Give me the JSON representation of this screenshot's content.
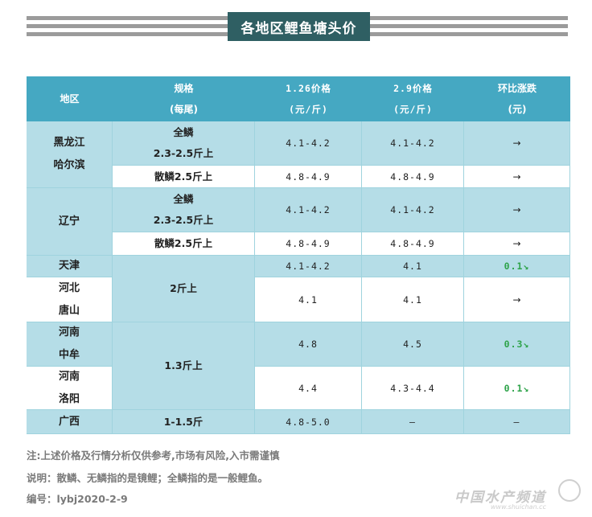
{
  "title": "各地区鲤鱼塘头价",
  "header": {
    "region": "地区",
    "spec_line1": "规格",
    "spec_line2": "(每尾)",
    "price1_line1": "1.26价格",
    "price1_line2": "(元/斤)",
    "price2_line1": "2.9价格",
    "price2_line2": "(元/斤)",
    "change_line1": "环比涨跌",
    "change_line2": "(元)"
  },
  "rows": {
    "r1": {
      "region1": "黑龙江",
      "region2": "哈尔滨",
      "spec1": "全鳞",
      "spec2": "2.3-2.5斤上",
      "p1": "4.1-4.2",
      "p2": "4.1-4.2",
      "chg": "→"
    },
    "r2": {
      "spec": "散鳞2.5斤上",
      "p1": "4.8-4.9",
      "p2": "4.8-4.9",
      "chg": "→"
    },
    "r3": {
      "region": "辽宁",
      "spec1": "全鳞",
      "spec2": "2.3-2.5斤上",
      "p1": "4.1-4.2",
      "p2": "4.1-4.2",
      "chg": "→"
    },
    "r4": {
      "spec": "散鳞2.5斤上",
      "p1": "4.8-4.9",
      "p2": "4.8-4.9",
      "chg": "→"
    },
    "r5": {
      "region": "天津",
      "p1": "4.1-4.2",
      "p2": "4.1",
      "chg": "0.1↘"
    },
    "r6": {
      "region1": "河北",
      "region2": "唐山",
      "p1": "4.1",
      "p2": "4.1",
      "chg": "→"
    },
    "spec_2jin": "2斤上",
    "r7": {
      "region1": "河南",
      "region2": "中牟",
      "p1": "4.8",
      "p2": "4.5",
      "chg": "0.3↘"
    },
    "r8": {
      "region1": "河南",
      "region2": "洛阳",
      "p1": "4.4",
      "p2": "4.3-4.4",
      "chg": "0.1↘"
    },
    "spec_13jin": "1.3斤上",
    "r9": {
      "region": "广西",
      "spec": "1-1.5斤",
      "p1": "4.8-5.0",
      "p2": "–",
      "chg": "–"
    }
  },
  "notes": {
    "n1": "注:上述价格及行情分析仅供参考,市场有风险,入市需谨慎",
    "n2": "说明：散鳞、无鳞指的是镜鲤；全鳞指的是一般鲤鱼。",
    "n3": "编号：lybj2020-2-9"
  },
  "watermark": {
    "text": "中国水产频道",
    "sub": "www.shuichan.cc"
  },
  "colors": {
    "header": "#45a8c2",
    "light_blue": "#b5dde7",
    "title_bg": "#2f5f63",
    "up_green": "#2ea34a"
  }
}
